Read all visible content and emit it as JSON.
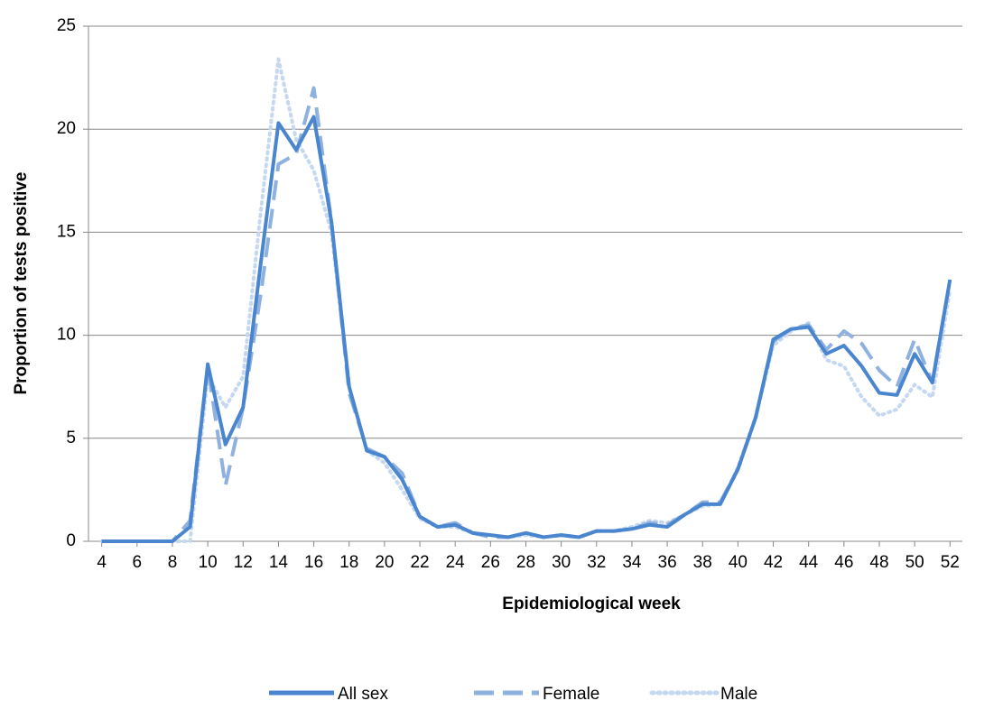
{
  "chart_data": {
    "type": "line",
    "y_label": "Proportion of tests positive",
    "x_label": "Epidemiological week",
    "x": [
      4,
      5,
      6,
      7,
      8,
      9,
      10,
      11,
      12,
      13,
      14,
      15,
      16,
      17,
      18,
      19,
      20,
      21,
      22,
      23,
      24,
      25,
      26,
      27,
      28,
      29,
      30,
      31,
      32,
      33,
      34,
      35,
      36,
      37,
      38,
      39,
      40,
      41,
      42,
      43,
      44,
      45,
      46,
      47,
      48,
      49,
      50,
      51,
      52
    ],
    "xlim": [
      3.25,
      52.7
    ],
    "xticks": [
      4,
      6,
      8,
      10,
      12,
      14,
      16,
      18,
      20,
      22,
      24,
      26,
      28,
      30,
      32,
      34,
      36,
      38,
      40,
      42,
      44,
      46,
      48,
      50,
      52
    ],
    "ylim": [
      0,
      25
    ],
    "yticks": [
      0,
      5,
      10,
      15,
      20,
      25
    ],
    "grid": true,
    "legend": "bottom",
    "series": [
      {
        "name": "All sex",
        "color": "#4a86d0",
        "dash": "solid",
        "values": [
          0,
          0,
          0,
          0,
          0,
          0.7,
          8.6,
          4.7,
          6.5,
          13.5,
          20.3,
          19.0,
          20.6,
          15.5,
          7.5,
          4.4,
          4.1,
          3.0,
          1.2,
          0.7,
          0.8,
          0.4,
          0.3,
          0.2,
          0.4,
          0.2,
          0.3,
          0.2,
          0.5,
          0.5,
          0.6,
          0.8,
          0.7,
          1.3,
          1.8,
          1.8,
          3.5,
          6,
          9.8,
          10.3,
          10.4,
          9.1,
          9.5,
          8.5,
          7.2,
          7.1,
          9.1,
          7.7,
          12.7
        ]
      },
      {
        "name": "Female",
        "color": "#8eb1e0",
        "dash": "dashed",
        "values": [
          0,
          0,
          0,
          0,
          0,
          1.0,
          8.5,
          2.7,
          6.5,
          12,
          18.3,
          18.8,
          22,
          15.5,
          7.2,
          4.5,
          4.1,
          3.3,
          1.2,
          0.7,
          0.9,
          0.4,
          0.2,
          0.2,
          0.4,
          0.2,
          0.3,
          0.2,
          0.5,
          0.5,
          0.6,
          0.9,
          0.8,
          1.3,
          1.9,
          1.9,
          3.5,
          6,
          9.7,
          10.3,
          10.5,
          9.3,
          10.2,
          9.6,
          8.3,
          7.5,
          9.8,
          7.7,
          12.7
        ]
      },
      {
        "name": "Male",
        "color": "#c5d8f0",
        "dash": "dotted",
        "values": [
          0,
          0,
          0,
          0,
          0,
          0,
          8,
          6.5,
          8,
          16,
          23.4,
          19.5,
          18,
          15,
          7.5,
          4.4,
          3.8,
          2.5,
          1.1,
          0.7,
          0.7,
          0.4,
          0.3,
          0.2,
          0.3,
          0.2,
          0.3,
          0.2,
          0.5,
          0.5,
          0.7,
          1.0,
          0.9,
          1.3,
          1.7,
          1.8,
          3.6,
          6,
          9.5,
          10.2,
          10.6,
          8.8,
          8.5,
          7.0,
          6.1,
          6.4,
          7.6,
          7.0,
          12.2
        ]
      }
    ]
  }
}
